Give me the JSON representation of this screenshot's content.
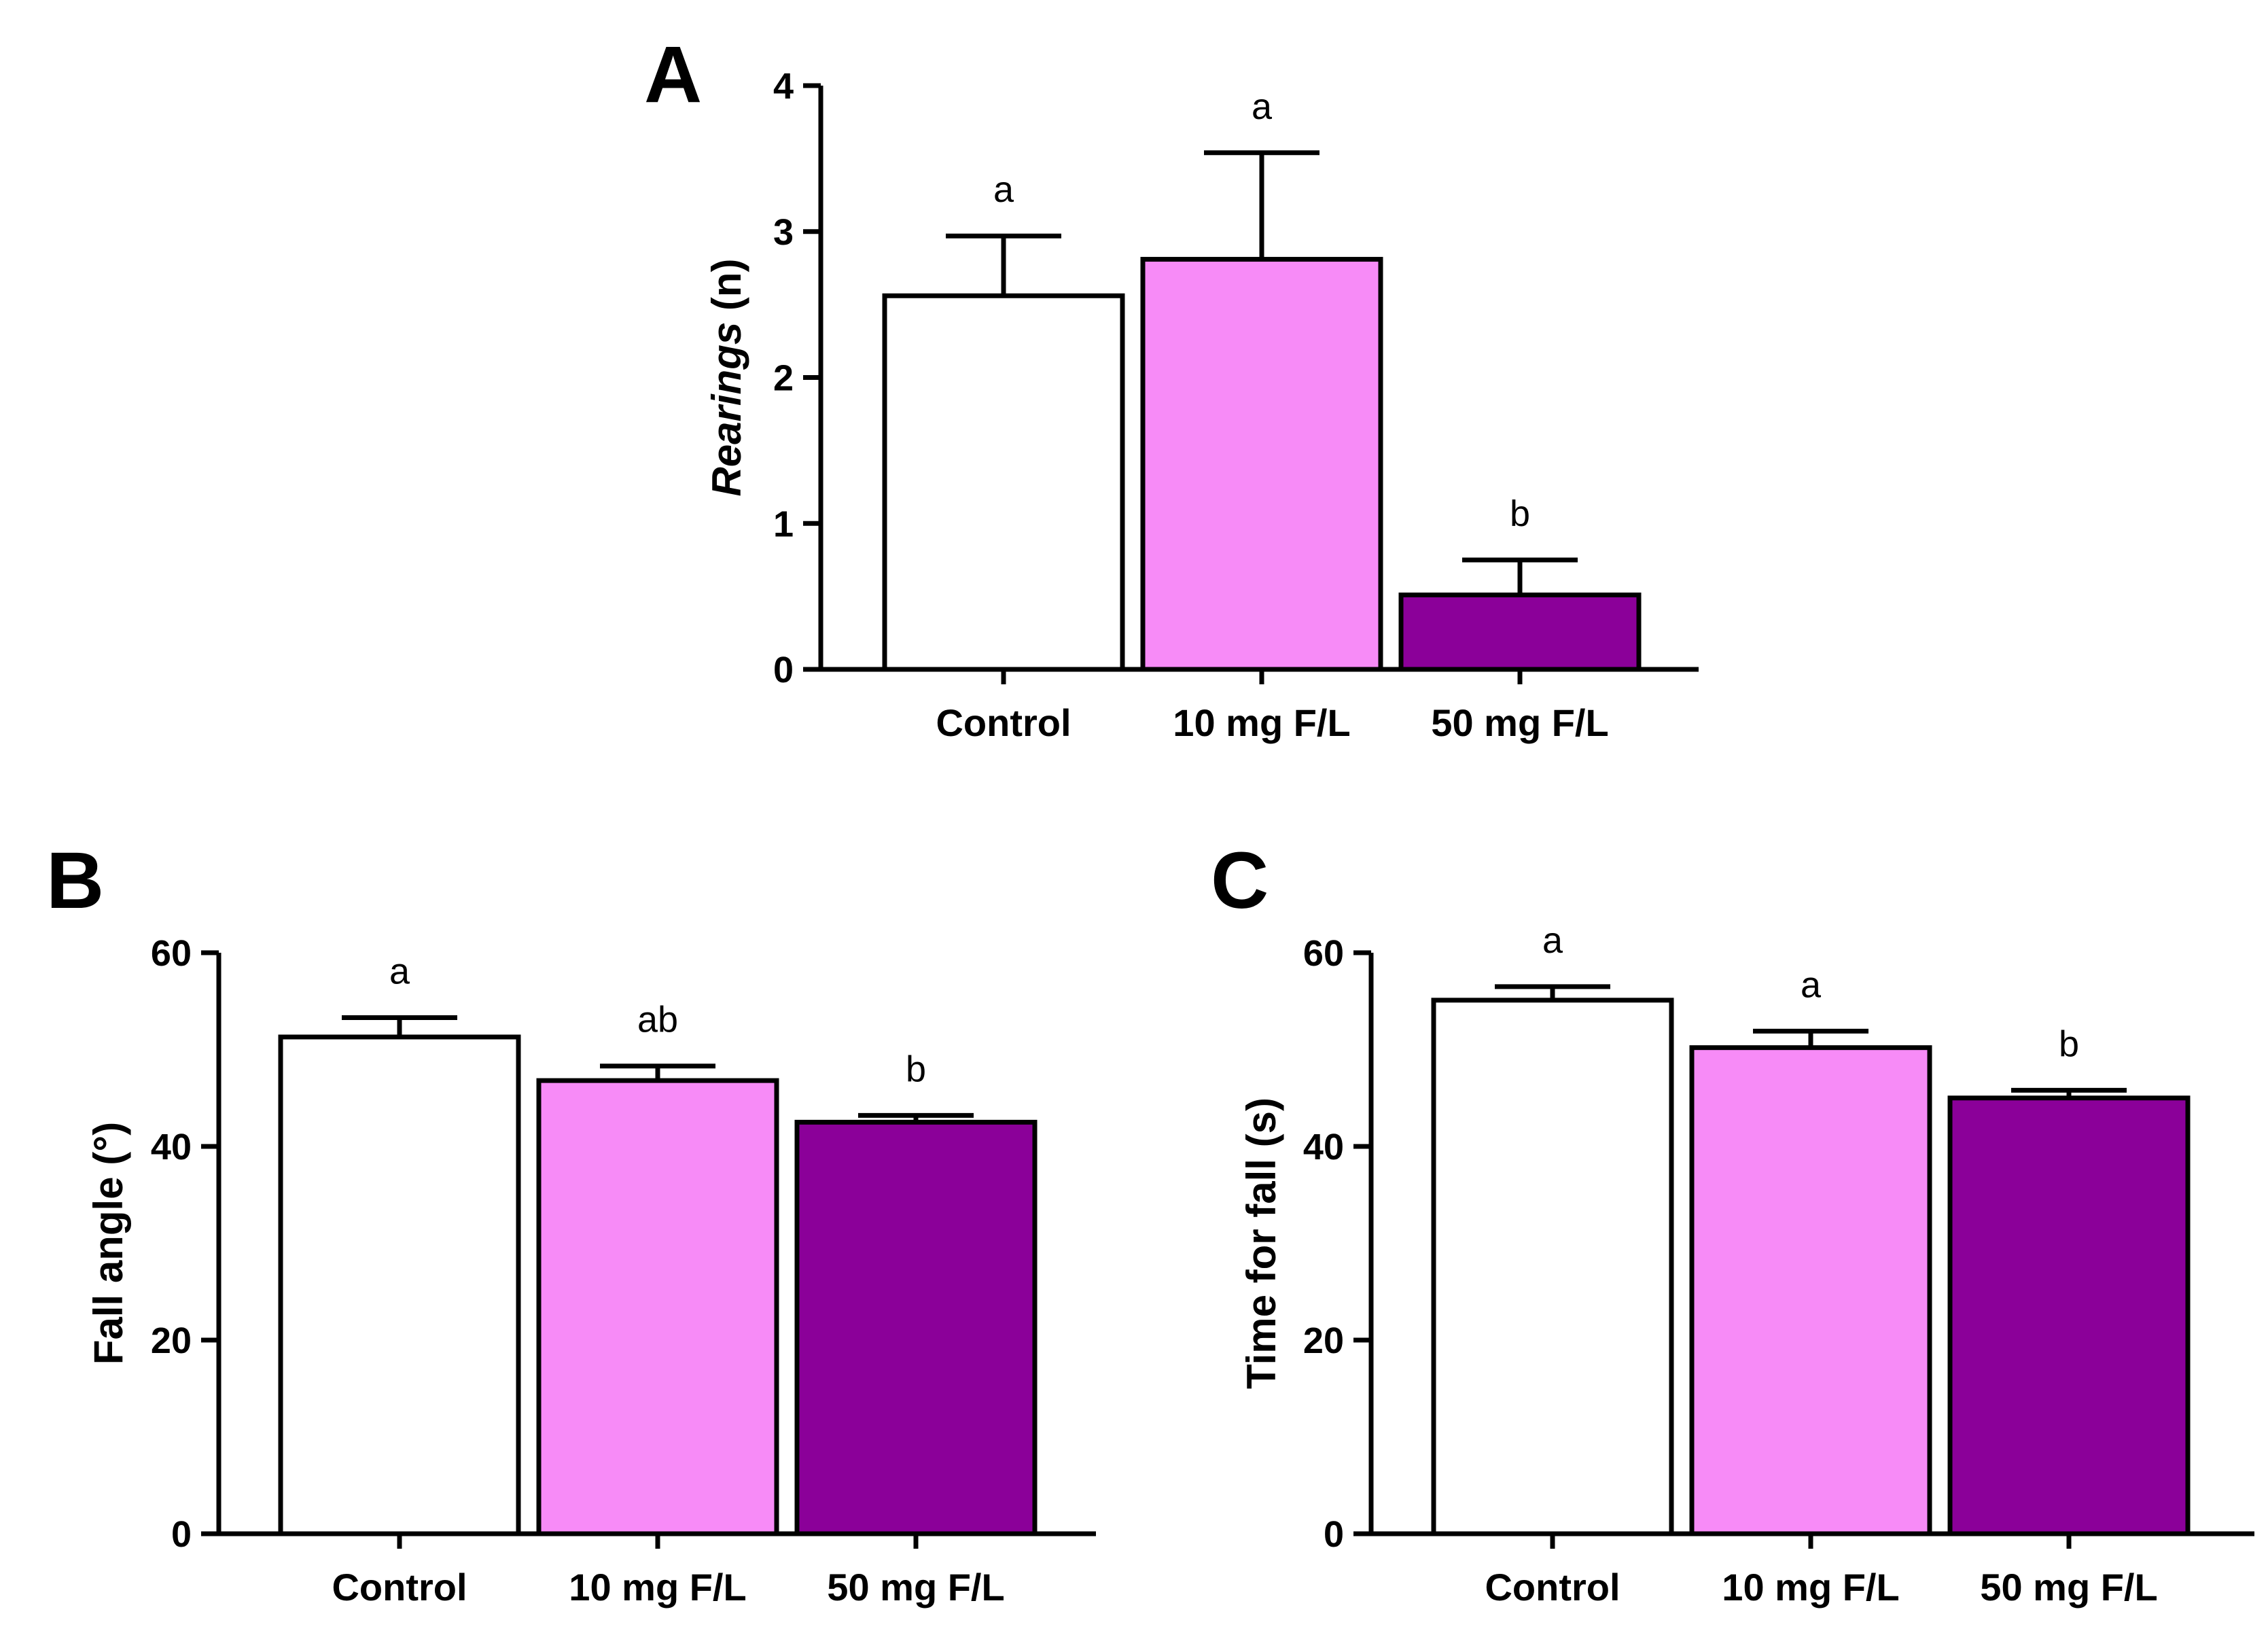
{
  "chart_data": [
    {
      "type": "bar",
      "panel": "A",
      "ylabel": "Rearings (n)",
      "ylabel_italic_part": "Rearings",
      "ylabel_rest": " (n)",
      "ylim": [
        0,
        4
      ],
      "yticks": [
        0,
        1,
        2,
        3,
        4
      ],
      "categories": [
        "Control",
        "10 mg F/L",
        "50 mg F/L"
      ],
      "values": [
        2.56,
        2.81,
        0.51
      ],
      "errors": [
        0.41,
        0.73,
        0.24
      ],
      "significance": [
        "a",
        "a",
        "b"
      ],
      "colors": [
        "#ffffff",
        "#f78bf7",
        "#8b0099"
      ]
    },
    {
      "type": "bar",
      "panel": "B",
      "ylabel": "Fall angle (°)",
      "ylim": [
        0,
        60
      ],
      "yticks": [
        0,
        20,
        40,
        60
      ],
      "categories": [
        "Control",
        "10 mg F/L",
        "50 mg F/L"
      ],
      "values": [
        51.3,
        46.8,
        42.5
      ],
      "errors": [
        2.0,
        1.5,
        0.7
      ],
      "significance": [
        "a",
        "ab",
        "b"
      ],
      "colors": [
        "#ffffff",
        "#f78bf7",
        "#8b0099"
      ]
    },
    {
      "type": "bar",
      "panel": "C",
      "ylabel": "Time for fall (s)",
      "ylim": [
        0,
        60
      ],
      "yticks": [
        0,
        20,
        40,
        60
      ],
      "categories": [
        "Control",
        "10 mg F/L",
        "50 mg F/L"
      ],
      "values": [
        55.1,
        50.2,
        45.0
      ],
      "errors": [
        1.4,
        1.7,
        0.8
      ],
      "significance": [
        "a",
        "a",
        "b"
      ],
      "colors": [
        "#ffffff",
        "#f78bf7",
        "#8b0099"
      ]
    }
  ]
}
